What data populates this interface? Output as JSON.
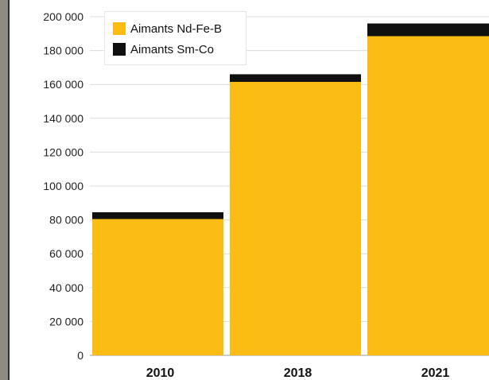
{
  "colors": {
    "frame": "#8e8c82",
    "frame_edge": "#2e2e2e",
    "grid": "#dcdcdc",
    "baseline": "#9a9a9a",
    "text": "#222222"
  },
  "chart_data": {
    "type": "bar",
    "stacked": true,
    "title": "",
    "xlabel": "",
    "ylabel": "",
    "categories": [
      "2010",
      "2018",
      "2021"
    ],
    "ylim": [
      0,
      200000
    ],
    "yticks": [
      0,
      20000,
      40000,
      60000,
      80000,
      100000,
      120000,
      140000,
      160000,
      180000,
      200000
    ],
    "ytick_labels": [
      "0",
      "20 000",
      "40 000",
      "60 000",
      "80 000",
      "100 000",
      "120 000",
      "140 000",
      "160 000",
      "180 000",
      "200 000"
    ],
    "grid": true,
    "legend_position": "top-left",
    "series": [
      {
        "name": "Aimants Nd-Fe-B",
        "color": "#fbbc13",
        "values": [
          80500,
          161500,
          188500
        ]
      },
      {
        "name": "Aimants Sm-Co",
        "color": "#0f0f0f",
        "values": [
          4000,
          4500,
          7500
        ]
      }
    ]
  }
}
